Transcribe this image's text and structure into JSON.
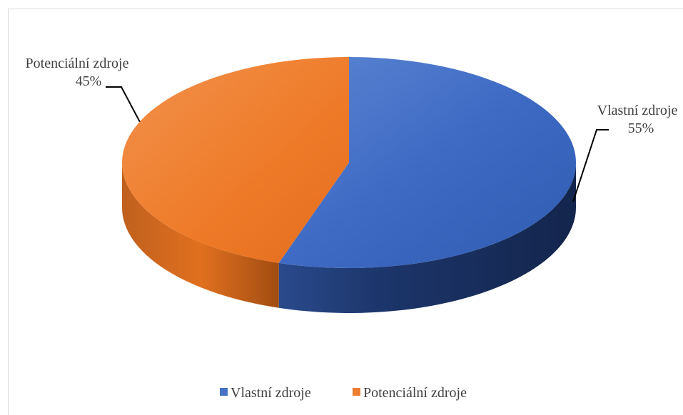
{
  "chart_data": {
    "type": "pie",
    "style": "3d",
    "categories": [
      "Vlastní zdroje",
      "Potenciální zdroje"
    ],
    "values": [
      55,
      45
    ],
    "value_labels": [
      "55%",
      "45%"
    ],
    "colors": [
      "#4472C4",
      "#ED7D31"
    ],
    "legend_position": "bottom"
  }
}
